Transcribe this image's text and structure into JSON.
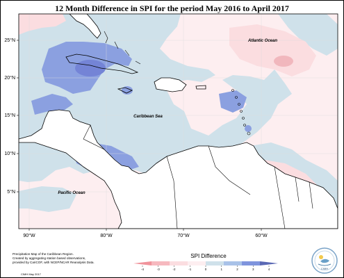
{
  "title": "12 Month Difference in SPI for the period May 2016 to April 2017",
  "map": {
    "lon_ticks": [
      {
        "label": "90°W",
        "lon": -90
      },
      {
        "label": "80°W",
        "lon": -80
      },
      {
        "label": "70°W",
        "lon": -70
      },
      {
        "label": "60°W",
        "lon": -60
      }
    ],
    "lat_ticks": [
      {
        "label": "25°N",
        "lat": 25
      },
      {
        "label": "20°N",
        "lat": 20
      },
      {
        "label": "15°N",
        "lat": 15
      },
      {
        "label": "10°N",
        "lat": 10
      },
      {
        "label": "5°N",
        "lat": 5
      }
    ],
    "labels": {
      "atlantic": "Atlantic Ocean",
      "caribbean": "Caribbean Sea",
      "pacific": "Pacific Ocean"
    }
  },
  "footnote": {
    "line1": "Precipitation Map of the Caribbean Region.",
    "line2": "Created by aggregating station based observations,",
    "line3": "provided by CariCOF, with NCEP/NCAR Reanalysis Data.",
    "credit": "CIMH May 2017"
  },
  "legend": {
    "title": "SPI Difference",
    "ticks": [
      "-4",
      "-3",
      "-2",
      "-1",
      "0",
      "1",
      "2",
      "3",
      "4"
    ],
    "colors": [
      "#f0939b",
      "#f6b9bf",
      "#fbdde0",
      "#fdeef0",
      "#cfe1ea",
      "#a9c2e8",
      "#7f94dd",
      "#5a68b4"
    ]
  },
  "logo": {
    "text": "CIMH"
  }
}
